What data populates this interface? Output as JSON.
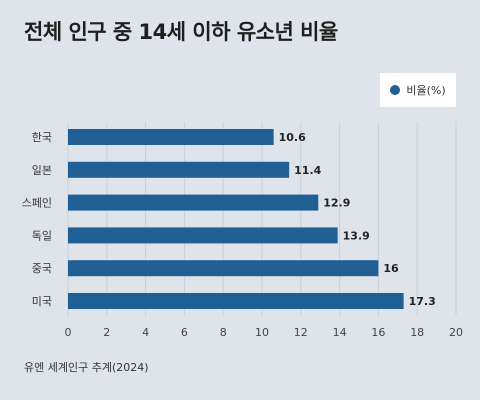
{
  "title": "전체 인구 중 14세 이하 유소년 비율",
  "source": "유엔 세계인구 추계(2024)",
  "chart_data": {
    "type": "bar",
    "orientation": "horizontal",
    "categories": [
      "한국",
      "일본",
      "스페인",
      "독일",
      "중국",
      "미국"
    ],
    "series": [
      {
        "name": "비율(%)",
        "values": [
          10.6,
          11.4,
          12.9,
          13.9,
          16,
          17.3
        ],
        "color": "#1f5f94"
      }
    ],
    "xlim": [
      0,
      20
    ],
    "xticks": [
      0,
      2,
      4,
      6,
      8,
      10,
      12,
      14,
      16,
      18,
      20
    ],
    "grid": true,
    "legend_position": "top-right"
  }
}
